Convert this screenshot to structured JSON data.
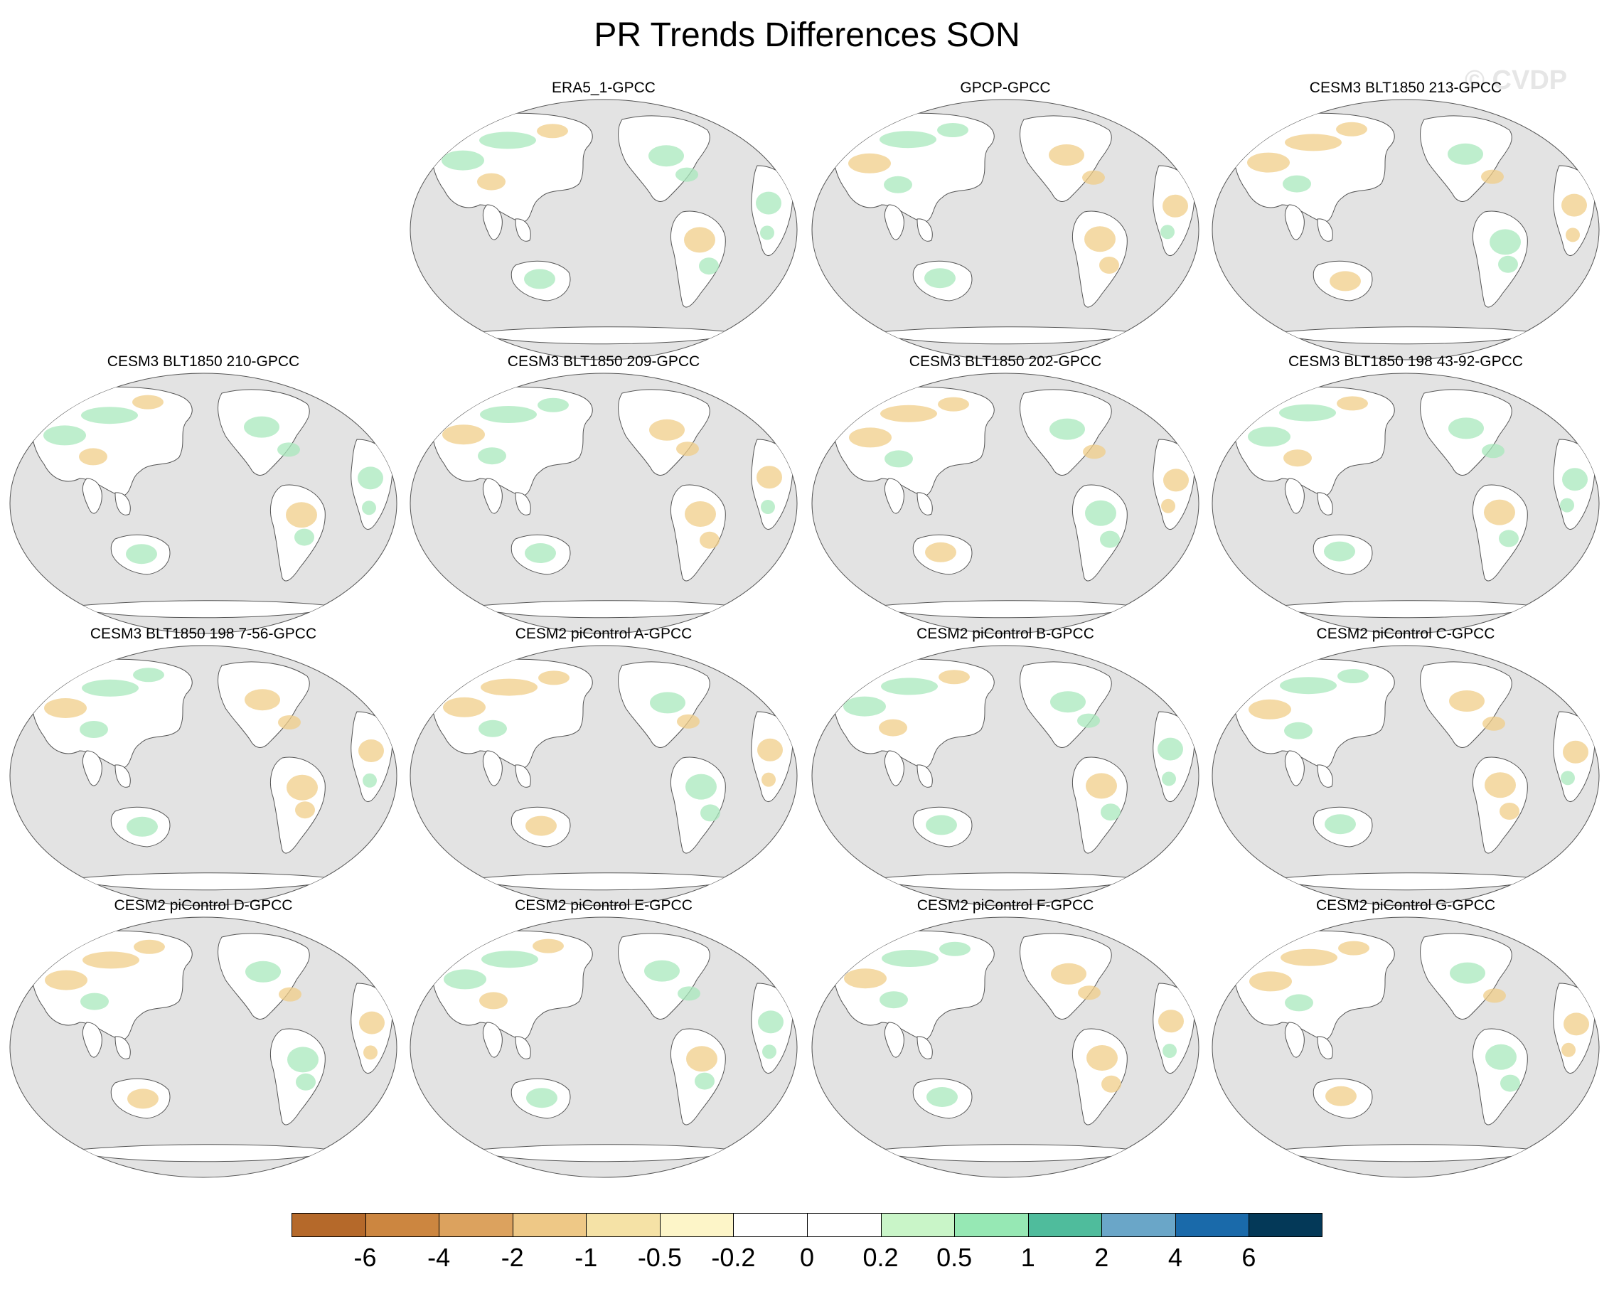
{
  "figure": {
    "title": "PR Trends Differences SON",
    "watermark": "© CVDP"
  },
  "panels": [
    {
      "title": "ERA5_1-GPCC",
      "row": 0,
      "col": 1
    },
    {
      "title": "GPCP-GPCC",
      "row": 0,
      "col": 2
    },
    {
      "title": "CESM3 BLT1850 213-GPCC",
      "row": 0,
      "col": 3
    },
    {
      "title": "CESM3 BLT1850 210-GPCC",
      "row": 1,
      "col": 0
    },
    {
      "title": "CESM3 BLT1850 209-GPCC",
      "row": 1,
      "col": 1
    },
    {
      "title": "CESM3 BLT1850 202-GPCC",
      "row": 1,
      "col": 2
    },
    {
      "title": "CESM3 BLT1850 198 43-92-GPCC",
      "row": 1,
      "col": 3
    },
    {
      "title": "CESM3 BLT1850 198 7-56-GPCC",
      "row": 2,
      "col": 0
    },
    {
      "title": "CESM2 piControl A-GPCC",
      "row": 2,
      "col": 1
    },
    {
      "title": "CESM2 piControl B-GPCC",
      "row": 2,
      "col": 2
    },
    {
      "title": "CESM2 piControl C-GPCC",
      "row": 2,
      "col": 3
    },
    {
      "title": "CESM2 piControl D-GPCC",
      "row": 3,
      "col": 0
    },
    {
      "title": "CESM2 piControl E-GPCC",
      "row": 3,
      "col": 1
    },
    {
      "title": "CESM2 piControl F-GPCC",
      "row": 3,
      "col": 2
    },
    {
      "title": "CESM2 piControl G-GPCC",
      "row": 3,
      "col": 3
    }
  ],
  "map_colors": {
    "ocean": "#e3e3e3",
    "land": "#ffffff",
    "outline": "#555555",
    "dry": "#f0cd88",
    "wet": "#a8e8bc"
  },
  "colorbar": {
    "colors": [
      "#b5692a",
      "#cc8640",
      "#dca25e",
      "#eec886",
      "#f5e2a6",
      "#fdf5c8",
      "#ffffff",
      "#ffffff",
      "#c9f5c8",
      "#96e8b4",
      "#4fbc9c",
      "#6aa6c8",
      "#1a6aaa",
      "#043958"
    ],
    "labels": [
      "-6",
      "-4",
      "-2",
      "-1",
      "-0.5",
      "-0.2",
      "0",
      "0.2",
      "0.5",
      "1",
      "2",
      "4",
      "6"
    ]
  }
}
